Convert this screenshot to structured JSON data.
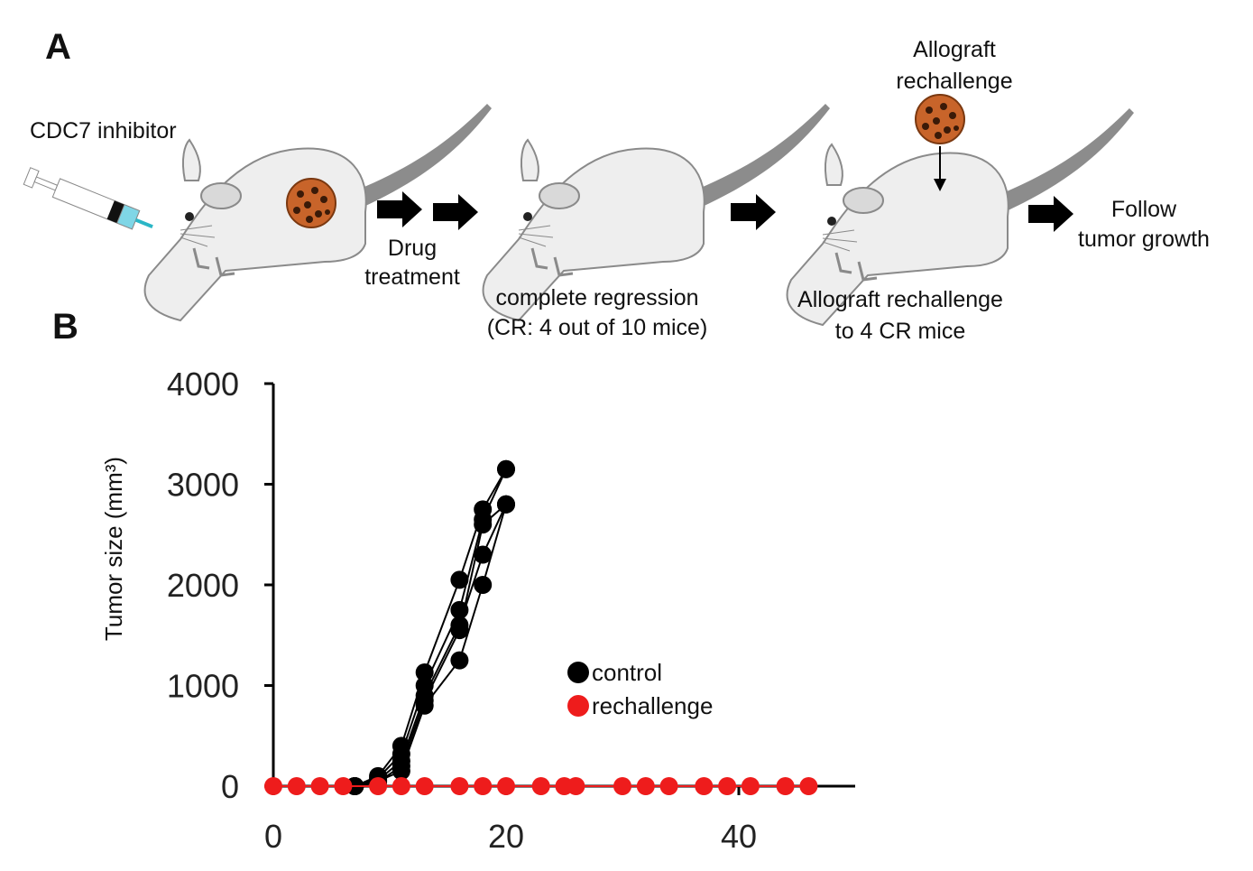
{
  "panel_a": {
    "label": "A",
    "injection": "CDC7 inhibitor",
    "step1": [
      "Drug",
      "treatment"
    ],
    "result": [
      "complete regression",
      "(CR: 4 out of 10 mice)"
    ],
    "challenge_top": [
      "Allograft",
      "rechallenge"
    ],
    "challenge_bottom": [
      "Allograft rechallenge",
      "to 4 CR mice"
    ],
    "follow": [
      "Follow",
      "tumor growth"
    ]
  },
  "panel_b_label": "B",
  "chart_data": {
    "type": "line",
    "y_label": "Tumor size (mm³)",
    "xlim": [
      0,
      50
    ],
    "xticks": [
      0,
      20,
      40
    ],
    "ylim": [
      0,
      4000
    ],
    "yticks": [
      0,
      1000,
      2000,
      3000,
      4000
    ],
    "series": [
      {
        "name": "control",
        "color": "#000000",
        "x": [
          7,
          9,
          11,
          13,
          16,
          18,
          20
        ],
        "mice": [
          [
            0,
            100,
            400,
            1130,
            2050,
            2750,
            3150
          ],
          [
            0,
            80,
            320,
            1000,
            1750,
            2650,
            3150
          ],
          [
            0,
            60,
            250,
            900,
            1600,
            2300,
            2800
          ],
          [
            0,
            50,
            150,
            800,
            1250,
            2000,
            2800
          ],
          [
            0,
            40,
            200,
            850,
            1550,
            2600,
            2800
          ]
        ]
      },
      {
        "name": "rechallenge",
        "color": "#ee1c1c",
        "x": [
          0,
          2,
          4,
          6,
          9,
          11,
          13,
          16,
          18,
          20,
          23,
          25,
          26,
          30,
          32,
          34,
          37,
          39,
          41,
          44,
          46
        ],
        "mice": [
          [
            0,
            0,
            0,
            0,
            0,
            0,
            0,
            0,
            0,
            0,
            0,
            0,
            0,
            0,
            0,
            0,
            0,
            0,
            0,
            0,
            0
          ]
        ]
      }
    ]
  }
}
